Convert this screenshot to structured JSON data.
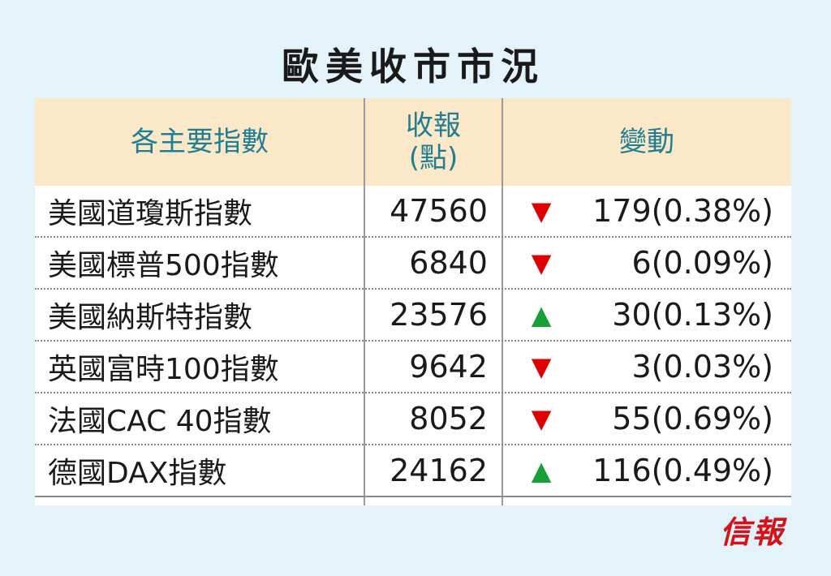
{
  "title": "歐美收市市況",
  "headers": {
    "index": "各主要指數",
    "close_line1": "收報",
    "close_line2": "(點)",
    "change": "變動"
  },
  "rows": [
    {
      "name": "美國道瓊斯指數",
      "close": "47560",
      "direction": "down",
      "arrow": "▼",
      "change": "179(0.38%)"
    },
    {
      "name": "美國標普500指數",
      "close": "6840",
      "direction": "down",
      "arrow": "▼",
      "change": "6(0.09%)"
    },
    {
      "name": "美國納斯特指數",
      "close": "23576",
      "direction": "up",
      "arrow": "▲",
      "change": "30(0.13%)"
    },
    {
      "name": "英國富時100指數",
      "close": "9642",
      "direction": "down",
      "arrow": "▼",
      "change": "3(0.03%)"
    },
    {
      "name": "法國CAC 40指數",
      "close": "8052",
      "direction": "down",
      "arrow": "▼",
      "change": "55(0.69%)"
    },
    {
      "name": "德國DAX指數",
      "close": "24162",
      "direction": "up",
      "arrow": "▲",
      "change": "116(0.49%)"
    }
  ],
  "logo": "信報",
  "colors": {
    "header_bg": "#fbe8c8",
    "header_text": "#1f7e92",
    "frame_bg": "#e4f3fa",
    "down": "#e00000",
    "up": "#18a038",
    "logo": "#d4121a"
  }
}
